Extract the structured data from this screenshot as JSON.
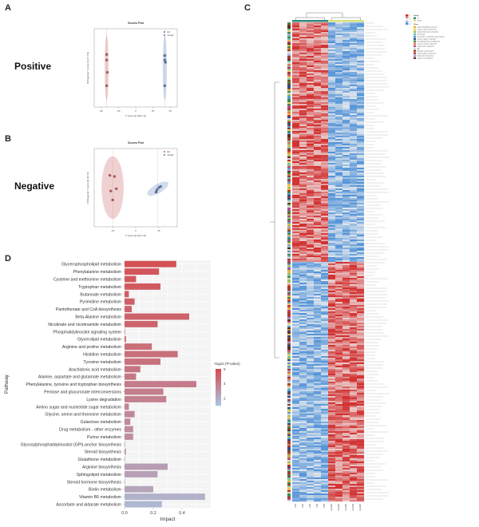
{
  "figure": {
    "panel_a": {
      "letter": "A",
      "mode_label": "Positive"
    },
    "panel_b": {
      "letter": "B",
      "mode_label": "Negative"
    },
    "panel_c": {
      "letter": "C"
    },
    "panel_d": {
      "letter": "D"
    }
  },
  "chart_data": [
    {
      "id": "score_positive",
      "type": "scatter",
      "title": "Scores Plot",
      "xlabel": "T score [1] (39.1 %)",
      "ylabel": "Orthogonal T score [1] (7.4 %)",
      "xticks": [
        -50,
        -25,
        0,
        25,
        50
      ],
      "xlim": [
        -60,
        60
      ],
      "ylim": [
        -35,
        35
      ],
      "legend": [
        "ctrl",
        "model"
      ],
      "series": [
        {
          "name": "ctrl",
          "color": "#c85a5a",
          "x": [
            -42,
            -42,
            -41,
            -42
          ],
          "y": [
            12,
            7,
            -4,
            -16
          ],
          "ellipse": {
            "cx": -42,
            "cy": 0,
            "rx": 3,
            "ry": 29
          }
        },
        {
          "name": "model",
          "color": "#5a7fb5",
          "x": [
            42,
            42,
            43,
            42
          ],
          "y": [
            11,
            7,
            5,
            -16
          ],
          "ellipse": {
            "cx": 42,
            "cy": 0,
            "rx": 3,
            "ry": 29
          }
        }
      ]
    },
    {
      "id": "score_negative",
      "type": "scatter",
      "title": "Scores Plot",
      "xlabel": "T score [1] (34.3 %)",
      "ylabel": "Orthogonal T score [1] (12 %)",
      "xticks": [
        -25,
        0,
        25
      ],
      "xlim": [
        -45,
        45
      ],
      "ylim": [
        -35,
        35
      ],
      "legend": [
        "ctrl",
        "model"
      ],
      "series": [
        {
          "name": "ctrl",
          "color": "#c85a5a",
          "x": [
            -28,
            -23,
            -21,
            -27,
            -25
          ],
          "y": [
            11,
            10,
            -1,
            -3,
            -11
          ],
          "ellipse": {
            "cx": -25,
            "cy": 0,
            "rx": 12,
            "ry": 28,
            "rot": 0
          }
        },
        {
          "name": "model",
          "color": "#5a7fb5",
          "x": [
            22,
            25,
            27,
            23
          ],
          "y": [
            -4,
            0,
            1,
            -2
          ],
          "ellipse": {
            "cx": 24,
            "cy": -1,
            "rx": 13,
            "ry": 4,
            "rot": -30
          }
        }
      ]
    },
    {
      "id": "heatmap",
      "type": "heatmap",
      "columns": [
        "ctrl1",
        "ctrl2",
        "ctrl3",
        "ctrl4",
        "ctrl5",
        "model1",
        "model2",
        "model3",
        "model4",
        "model5"
      ],
      "groups": [
        "ctrl",
        "model"
      ],
      "group_colors": {
        "ctrl": "#2f8a7e",
        "model": "#d6e07a"
      },
      "legend_title_group": "Group",
      "legend_title_class": "Class",
      "classes": [
        "Lipids and lipid-like molecules",
        "Organic acids and derivatives",
        "Organoheterocyclic compounds",
        "Benzenoids",
        "Nucleosides, nucleotides, and analogues",
        "Organic oxygen compounds",
        "Phenylpropanoids and polyketides",
        "Organic nitrogen compounds",
        "Organosulfur compounds",
        "NA",
        "Alkaloids and derivatives",
        "Organohalogen compounds",
        "Hydrocarbon derivatives",
        "Lignans and neolignans"
      ],
      "class_colors": [
        "#e8b840",
        "#f2d05a",
        "#9bc25a",
        "#6cc5b5",
        "#5a9bd0",
        "#2c4f8c",
        "#3c8c4f",
        "#e07a3c",
        "#b84a8a",
        "#d8d8d8",
        "#8a4a2c",
        "#c03030",
        "#a0a0d0",
        "#60301a"
      ],
      "scale_ticks": [
        2,
        1,
        0,
        -1,
        -2
      ],
      "n_rows": 300,
      "top_block_rows": 150,
      "pattern": "top: ctrl high / model low; bottom: ctrl low / model high"
    },
    {
      "id": "pathway",
      "type": "bar",
      "title": "",
      "xlabel": "Impact",
      "ylabel": "Pathway",
      "xticks": [
        0.0,
        0.2,
        0.4
      ],
      "xlim": [
        0,
        0.6
      ],
      "legend_title": "-log10 (P-value)",
      "color_scale_ticks": [
        6,
        4,
        2
      ],
      "color_range": [
        1,
        6
      ],
      "categories": [
        "Glycerophospholipid metabolism",
        "Phenylalanine metabolism",
        "Cysteine and methionine metabolism",
        "Tryptophan metabolism",
        "Butanoate metabolism",
        "Pyrimidine metabolism",
        "Pantothenate and CoA biosynthesis",
        "Beta-Alanine metabolism",
        "Nicotinate and nicotinamide metabolism",
        "Phosphatidylinositol signaling system",
        "Glycerolipid metabolism",
        "Arginine and proline metabolism",
        "Histidine metabolism",
        "Tyrosine metabolism",
        "Arachidonic acid metabolism",
        "Alanine, aspartate and glutamate metabolism",
        "Phenylalanine, tyrosine and tryptophan biosynthesis",
        "Pentose and glucuronate interconversions",
        "Lysine degradation",
        "Amino sugar and nucleotide sugar metabolism",
        "Glycine, serine and threonine metabolism",
        "Galactose metabolism",
        "Drug metabolism - other enzymes",
        "Purine metabolism",
        "Glycosylphosphatidylinositol (GPI)-anchor biosynthesis",
        "Steroid biosynthesis",
        "Glutathione metabolism",
        "Arginine biosynthesis",
        "Sphingolipid metabolism",
        "Steroid hormone biosynthesis",
        "Biotin metabolism",
        "Vitamin B6 metabolism",
        "Ascorbate and aldarate metabolism"
      ],
      "values": [
        0.36,
        0.24,
        0.08,
        0.25,
        0.03,
        0.07,
        0.05,
        0.45,
        0.23,
        0.0,
        0.01,
        0.19,
        0.37,
        0.25,
        0.11,
        0.08,
        0.5,
        0.27,
        0.29,
        0.03,
        0.07,
        0.04,
        0.06,
        0.06,
        0.0,
        0.01,
        0.0,
        0.3,
        0.23,
        0.0,
        0.2,
        0.56,
        0.26
      ],
      "neglog10p": [
        5.8,
        5.6,
        5.5,
        5.4,
        5.3,
        5.2,
        5.1,
        5.1,
        5.0,
        4.9,
        4.7,
        4.6,
        4.5,
        4.4,
        4.3,
        4.2,
        4.0,
        3.9,
        3.8,
        3.6,
        3.5,
        3.4,
        3.3,
        3.2,
        3.0,
        2.9,
        2.8,
        2.6,
        2.5,
        2.4,
        2.3,
        1.8,
        1.5
      ]
    }
  ]
}
